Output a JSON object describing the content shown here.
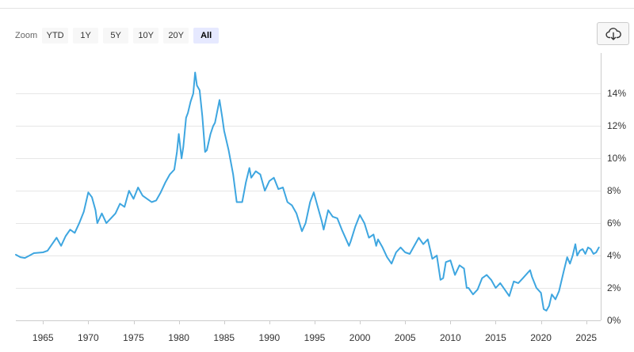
{
  "toolbar": {
    "zoom_label": "Zoom",
    "ranges": [
      {
        "label": "YTD",
        "active": false
      },
      {
        "label": "1Y",
        "active": false
      },
      {
        "label": "5Y",
        "active": false
      },
      {
        "label": "10Y",
        "active": false
      },
      {
        "label": "20Y",
        "active": false
      },
      {
        "label": "All",
        "active": true
      }
    ],
    "export_icon": "cloud-download-icon"
  },
  "chart_data": {
    "type": "line",
    "title": "",
    "xlabel": "",
    "ylabel": "",
    "xlim": [
      1962.0,
      2026.6
    ],
    "ylim": [
      0,
      16.5
    ],
    "x_ticks": [
      1965,
      1970,
      1975,
      1980,
      1985,
      1990,
      1995,
      2000,
      2005,
      2010,
      2015,
      2020,
      2025
    ],
    "y_ticks": [
      0,
      2,
      4,
      6,
      8,
      10,
      12,
      14
    ],
    "y_tick_labels": [
      "0%",
      "2%",
      "4%",
      "6%",
      "8%",
      "10%",
      "12%",
      "14%"
    ],
    "y_axis_position": "right",
    "grid": "horizontal",
    "legend": "none",
    "series": [
      {
        "color": "#3ea6e0",
        "points": [
          [
            1962.0,
            4.05
          ],
          [
            1962.5,
            3.9
          ],
          [
            1963.0,
            3.85
          ],
          [
            1963.5,
            4.0
          ],
          [
            1964.0,
            4.15
          ],
          [
            1965.0,
            4.2
          ],
          [
            1965.5,
            4.3
          ],
          [
            1966.0,
            4.7
          ],
          [
            1966.5,
            5.1
          ],
          [
            1967.0,
            4.6
          ],
          [
            1967.5,
            5.2
          ],
          [
            1968.0,
            5.6
          ],
          [
            1968.5,
            5.4
          ],
          [
            1969.0,
            6.0
          ],
          [
            1969.5,
            6.7
          ],
          [
            1970.0,
            7.9
          ],
          [
            1970.4,
            7.6
          ],
          [
            1970.8,
            6.8
          ],
          [
            1971.0,
            6.0
          ],
          [
            1971.5,
            6.6
          ],
          [
            1972.0,
            6.0
          ],
          [
            1972.5,
            6.3
          ],
          [
            1973.0,
            6.6
          ],
          [
            1973.5,
            7.2
          ],
          [
            1974.0,
            7.0
          ],
          [
            1974.5,
            8.0
          ],
          [
            1975.0,
            7.5
          ],
          [
            1975.5,
            8.2
          ],
          [
            1976.0,
            7.7
          ],
          [
            1976.5,
            7.5
          ],
          [
            1977.0,
            7.3
          ],
          [
            1977.5,
            7.4
          ],
          [
            1978.0,
            7.9
          ],
          [
            1978.5,
            8.5
          ],
          [
            1979.0,
            9.0
          ],
          [
            1979.5,
            9.3
          ],
          [
            1979.8,
            10.4
          ],
          [
            1980.0,
            11.5
          ],
          [
            1980.3,
            10.0
          ],
          [
            1980.5,
            10.7
          ],
          [
            1980.8,
            12.5
          ],
          [
            1981.0,
            12.8
          ],
          [
            1981.3,
            13.5
          ],
          [
            1981.6,
            14.0
          ],
          [
            1981.8,
            15.3
          ],
          [
            1982.0,
            14.5
          ],
          [
            1982.3,
            14.2
          ],
          [
            1982.6,
            12.6
          ],
          [
            1982.9,
            10.4
          ],
          [
            1983.1,
            10.5
          ],
          [
            1983.5,
            11.5
          ],
          [
            1983.8,
            12.0
          ],
          [
            1984.0,
            12.2
          ],
          [
            1984.5,
            13.6
          ],
          [
            1984.8,
            12.5
          ],
          [
            1985.0,
            11.7
          ],
          [
            1985.5,
            10.5
          ],
          [
            1986.0,
            9.0
          ],
          [
            1986.4,
            7.3
          ],
          [
            1986.8,
            7.3
          ],
          [
            1987.0,
            7.3
          ],
          [
            1987.4,
            8.5
          ],
          [
            1987.8,
            9.4
          ],
          [
            1988.0,
            8.8
          ],
          [
            1988.5,
            9.2
          ],
          [
            1989.0,
            9.0
          ],
          [
            1989.5,
            8.0
          ],
          [
            1990.0,
            8.6
          ],
          [
            1990.5,
            8.8
          ],
          [
            1991.0,
            8.1
          ],
          [
            1991.5,
            8.2
          ],
          [
            1992.0,
            7.3
          ],
          [
            1992.5,
            7.1
          ],
          [
            1993.0,
            6.6
          ],
          [
            1993.6,
            5.5
          ],
          [
            1994.0,
            6.0
          ],
          [
            1994.5,
            7.3
          ],
          [
            1994.9,
            7.9
          ],
          [
            1995.3,
            7.1
          ],
          [
            1995.8,
            6.1
          ],
          [
            1996.0,
            5.6
          ],
          [
            1996.5,
            6.8
          ],
          [
            1997.0,
            6.4
          ],
          [
            1997.5,
            6.3
          ],
          [
            1998.0,
            5.6
          ],
          [
            1998.8,
            4.6
          ],
          [
            1999.0,
            4.9
          ],
          [
            1999.5,
            5.8
          ],
          [
            2000.0,
            6.5
          ],
          [
            2000.5,
            6.0
          ],
          [
            2001.0,
            5.1
          ],
          [
            2001.5,
            5.3
          ],
          [
            2001.8,
            4.6
          ],
          [
            2002.0,
            5.0
          ],
          [
            2002.5,
            4.5
          ],
          [
            2003.0,
            3.9
          ],
          [
            2003.5,
            3.5
          ],
          [
            2004.0,
            4.2
          ],
          [
            2004.5,
            4.5
          ],
          [
            2005.0,
            4.2
          ],
          [
            2005.5,
            4.1
          ],
          [
            2006.0,
            4.6
          ],
          [
            2006.5,
            5.1
          ],
          [
            2007.0,
            4.7
          ],
          [
            2007.5,
            5.0
          ],
          [
            2008.0,
            3.8
          ],
          [
            2008.5,
            4.0
          ],
          [
            2008.9,
            2.5
          ],
          [
            2009.2,
            2.6
          ],
          [
            2009.5,
            3.6
          ],
          [
            2010.0,
            3.7
          ],
          [
            2010.5,
            2.8
          ],
          [
            2011.0,
            3.4
          ],
          [
            2011.5,
            3.2
          ],
          [
            2011.8,
            2.0
          ],
          [
            2012.0,
            2.0
          ],
          [
            2012.5,
            1.6
          ],
          [
            2013.0,
            1.9
          ],
          [
            2013.5,
            2.6
          ],
          [
            2014.0,
            2.8
          ],
          [
            2014.5,
            2.5
          ],
          [
            2015.0,
            2.0
          ],
          [
            2015.5,
            2.3
          ],
          [
            2016.0,
            1.9
          ],
          [
            2016.5,
            1.5
          ],
          [
            2017.0,
            2.4
          ],
          [
            2017.5,
            2.3
          ],
          [
            2018.0,
            2.6
          ],
          [
            2018.8,
            3.1
          ],
          [
            2019.0,
            2.7
          ],
          [
            2019.5,
            2.0
          ],
          [
            2020.0,
            1.7
          ],
          [
            2020.3,
            0.7
          ],
          [
            2020.6,
            0.6
          ],
          [
            2020.9,
            0.9
          ],
          [
            2021.2,
            1.6
          ],
          [
            2021.6,
            1.3
          ],
          [
            2022.0,
            1.8
          ],
          [
            2022.5,
            3.0
          ],
          [
            2022.9,
            3.9
          ],
          [
            2023.2,
            3.5
          ],
          [
            2023.5,
            4.0
          ],
          [
            2023.8,
            4.7
          ],
          [
            2024.0,
            4.0
          ],
          [
            2024.3,
            4.3
          ],
          [
            2024.6,
            4.4
          ],
          [
            2024.9,
            4.1
          ],
          [
            2025.2,
            4.5
          ],
          [
            2025.5,
            4.4
          ],
          [
            2025.8,
            4.1
          ],
          [
            2026.1,
            4.2
          ],
          [
            2026.4,
            4.5
          ]
        ]
      }
    ]
  }
}
